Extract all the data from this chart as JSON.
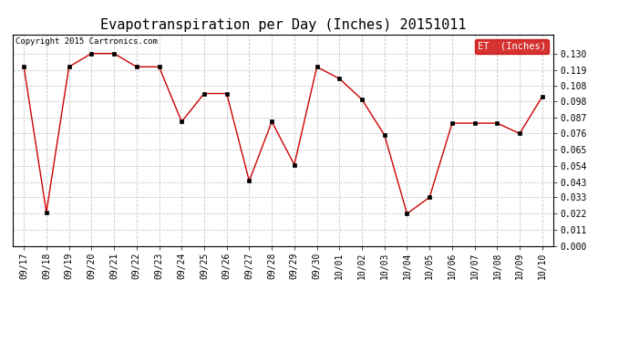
{
  "title": "Evapotranspiration per Day (Inches) 20151011",
  "copyright_text": "Copyright 2015 Cartronics.com",
  "legend_label": "ET  (Inches)",
  "dates": [
    "09/17",
    "09/18",
    "09/19",
    "09/20",
    "09/21",
    "09/22",
    "09/23",
    "09/24",
    "09/25",
    "09/26",
    "09/27",
    "09/28",
    "09/29",
    "09/30",
    "10/01",
    "10/02",
    "10/03",
    "10/04",
    "10/05",
    "10/06",
    "10/07",
    "10/08",
    "10/09",
    "10/10"
  ],
  "values": [
    0.121,
    0.023,
    0.121,
    0.13,
    0.13,
    0.121,
    0.121,
    0.084,
    0.103,
    0.103,
    0.044,
    0.084,
    0.055,
    0.121,
    0.113,
    0.099,
    0.075,
    0.022,
    0.033,
    0.083,
    0.083,
    0.083,
    0.076,
    0.101
  ],
  "line_color": "#cc0000",
  "marker": "s",
  "marker_size": 2.5,
  "ylim": [
    0.0,
    0.143
  ],
  "yticks": [
    0.0,
    0.011,
    0.022,
    0.033,
    0.043,
    0.054,
    0.065,
    0.076,
    0.087,
    0.098,
    0.108,
    0.119,
    0.13
  ],
  "background_color": "#ffffff",
  "grid_color": "#c8c8c8",
  "title_fontsize": 11,
  "tick_fontsize": 7,
  "copyright_fontsize": 6.5,
  "legend_bg": "#cc0000",
  "legend_text_color": "#ffffff",
  "legend_fontsize": 7.5
}
